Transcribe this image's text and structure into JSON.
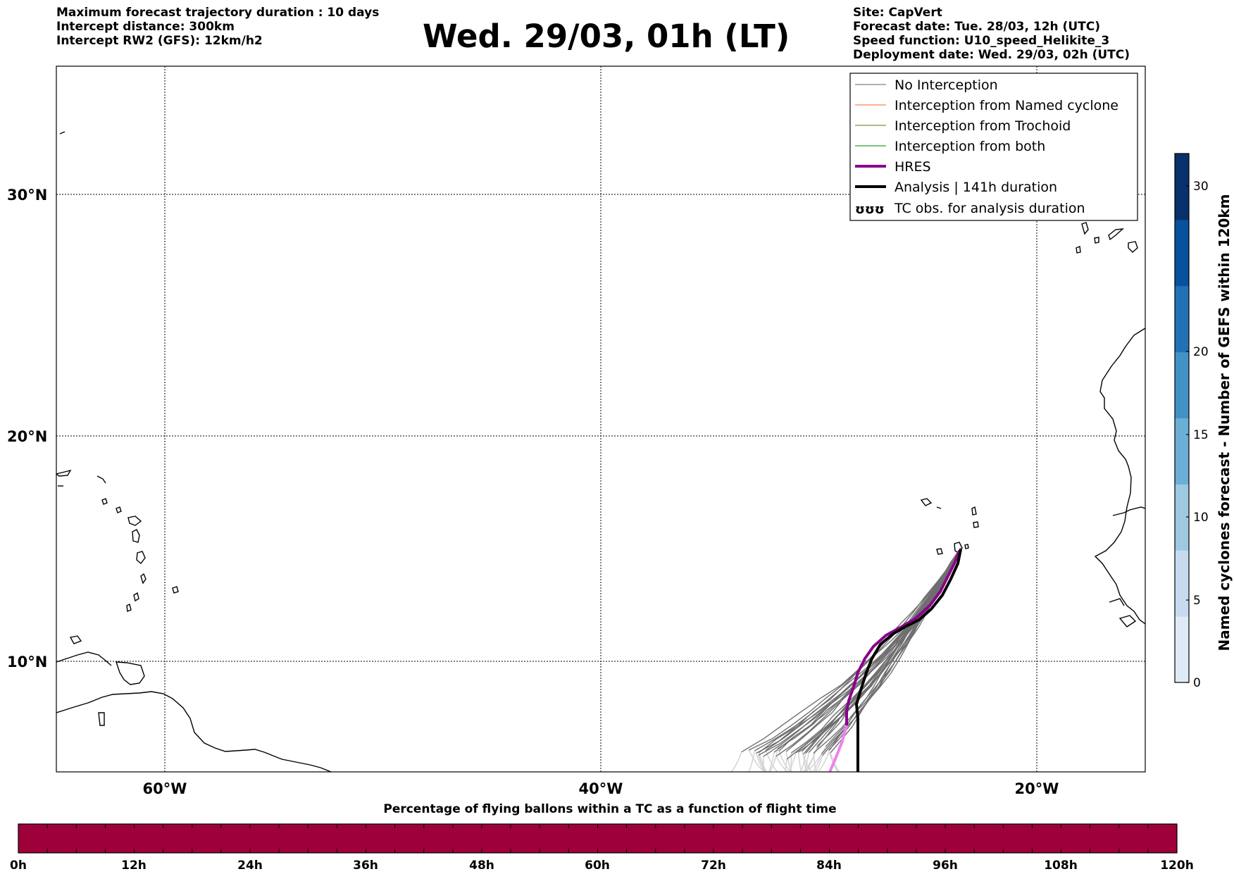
{
  "header": {
    "left_lines": [
      "Maximum forecast trajectory duration : 10 days",
      "Intercept distance: 300km",
      "Intercept RW2 (GFS):  12km/h2"
    ],
    "title": "Wed. 29/03, 01h (LT)",
    "right_lines": [
      "Site: CapVert",
      "Forecast date: Tue. 28/03, 12h (UTC)",
      "Speed function: U10_speed_Helikite_3",
      "Deployment date: Wed. 29/03, 02h (UTC)"
    ]
  },
  "map": {
    "lon_range": [
      -65,
      -15
    ],
    "lat_range": [
      5.5,
      35
    ],
    "lon_ticks": [
      "60°W",
      "40°W",
      "20°W"
    ],
    "lat_ticks": [
      "30°N",
      "20°N",
      "10°N"
    ],
    "grid": true,
    "launch_site": {
      "lon": -22.9,
      "lat": 14.9
    }
  },
  "legend": {
    "placement": "top-right",
    "items": [
      {
        "label": "No Interception",
        "color": "#7f7f7f",
        "style": "thin"
      },
      {
        "label": "Interception from Named cyclone",
        "color": "#ff7f50",
        "style": "thin"
      },
      {
        "label": "Interception from Trochoid",
        "color": "#8b8b3a",
        "style": "thin"
      },
      {
        "label": "Interception from both",
        "color": "#2ca02c",
        "style": "thin"
      },
      {
        "label": "HRES",
        "color": "#8b008b",
        "style": "thick"
      },
      {
        "label": "Analysis | 141h duration",
        "color": "#000000",
        "style": "thick"
      },
      {
        "label": "TC obs. for analysis duration",
        "color": "#000000",
        "style": "symbol",
        "symbol": "ʊʊʊ"
      }
    ]
  },
  "colorbar_right": {
    "label": "Named cyclones forecast - Number of GEFS within 120km",
    "ticks": [
      "0",
      "5",
      "10",
      "15",
      "20",
      "30"
    ],
    "range": [
      0,
      32
    ],
    "colors": [
      "#deebf7",
      "#c6dbef",
      "#9ecae1",
      "#6baed6",
      "#4292c6",
      "#2171b5",
      "#08519c",
      "#08306b"
    ]
  },
  "colorbar_bottom": {
    "title": "Percentage of flying ballons within a TC as a function of flight time",
    "ticks": [
      "0h",
      "12h",
      "24h",
      "36h",
      "48h",
      "60h",
      "72h",
      "84h",
      "96h",
      "108h",
      "120h"
    ],
    "fill_color": "#9e003a"
  }
}
